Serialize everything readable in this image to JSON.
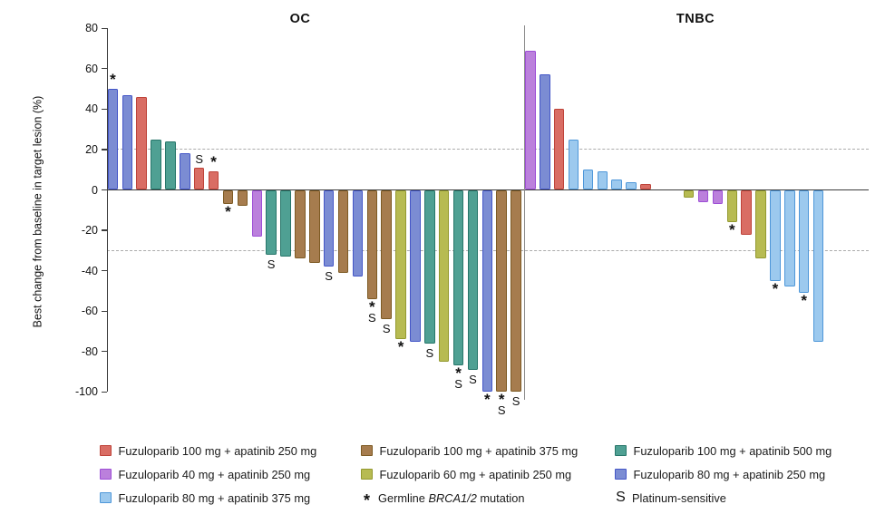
{
  "panels": {
    "left": "OC",
    "right": "TNBC"
  },
  "axis": {
    "y_label": "Best change from baseline in target lesion (%)"
  },
  "chart_data": {
    "type": "bar",
    "subtype": "waterfall",
    "title_left": "OC",
    "title_right": "TNBC",
    "xlabel": "",
    "ylabel": "Best change from baseline in target lesion (%)",
    "ylim": [
      -100,
      80
    ],
    "yticks": [
      80,
      60,
      40,
      20,
      0,
      -20,
      -40,
      -60,
      -80,
      -100
    ],
    "reference_lines": [
      20,
      -30
    ],
    "grid": "dashed-reference-lines-only",
    "legend_position": "bottom",
    "marker_meanings": {
      "*": "Germline BRCA1/2 mutation",
      "S": "Platinum-sensitive"
    },
    "groups": {
      "F100_A250": {
        "label": "Fuzuloparib 100 mg + apatinib 250 mg",
        "fill": "#D96D64",
        "border": "#BE4339"
      },
      "F40_A250": {
        "label": "Fuzuloparib 40 mg + apatinib 250 mg",
        "fill": "#BB80DC",
        "border": "#9D4ED6"
      },
      "F80_A375": {
        "label": "Fuzuloparib 80 mg + apatinib 375 mg",
        "fill": "#9CC9EE",
        "border": "#4E97D9"
      },
      "F100_A375": {
        "label": "Fuzuloparib 100 mg + apatinib 375 mg",
        "fill": "#A67C4E",
        "border": "#7D5A23"
      },
      "F60_A250": {
        "label": "Fuzuloparib 60 mg + apatinib 250 mg",
        "fill": "#B7BB52",
        "border": "#93992F"
      },
      "F100_A500": {
        "label": "Fuzuloparib 100 mg + apatinib 500 mg",
        "fill": "#4FA093",
        "border": "#27766A"
      },
      "F80_A250": {
        "label": "Fuzuloparib 80 mg + apatinib 250 mg",
        "fill": "#7B8CD3",
        "border": "#4456C7"
      }
    },
    "series": [
      {
        "panel": "OC",
        "bars": [
          {
            "group": "F80_A250",
            "value": 50,
            "marks": [
              "*"
            ]
          },
          {
            "group": "F80_A250",
            "value": 47
          },
          {
            "group": "F100_A250",
            "value": 46
          },
          {
            "group": "F100_A500",
            "value": 25
          },
          {
            "group": "F100_A500",
            "value": 24
          },
          {
            "group": "F80_A250",
            "value": 18
          },
          {
            "group": "F100_A250",
            "value": 11,
            "marks": [
              "S"
            ]
          },
          {
            "group": "F100_A250",
            "value": 9,
            "marks": [
              "*"
            ]
          },
          {
            "group": "F100_A375",
            "value": -7,
            "marks": [
              "*"
            ]
          },
          {
            "group": "F100_A375",
            "value": -8
          },
          {
            "group": "F40_A250",
            "value": -23
          },
          {
            "group": "F100_A500",
            "value": -32,
            "marks": [
              "S"
            ]
          },
          {
            "group": "F100_A500",
            "value": -33
          },
          {
            "group": "F100_A375",
            "value": -34
          },
          {
            "group": "F100_A375",
            "value": -36
          },
          {
            "group": "F80_A250",
            "value": -38,
            "marks": [
              "S"
            ]
          },
          {
            "group": "F100_A375",
            "value": -41
          },
          {
            "group": "F80_A250",
            "value": -43
          },
          {
            "group": "F100_A375",
            "value": -54,
            "marks": [
              "*",
              "S"
            ]
          },
          {
            "group": "F100_A375",
            "value": -64,
            "marks": [
              "S"
            ]
          },
          {
            "group": "F60_A250",
            "value": -74,
            "marks": [
              "*"
            ]
          },
          {
            "group": "F80_A250",
            "value": -75
          },
          {
            "group": "F100_A500",
            "value": -76,
            "marks": [
              "S"
            ]
          },
          {
            "group": "F60_A250",
            "value": -85
          },
          {
            "group": "F100_A500",
            "value": -87,
            "marks": [
              "*",
              "S"
            ]
          },
          {
            "group": "F100_A500",
            "value": -89,
            "marks": [
              "S"
            ]
          },
          {
            "group": "F80_A250",
            "value": -100,
            "marks": [
              "*"
            ]
          },
          {
            "group": "F100_A375",
            "value": -100,
            "marks": [
              "*",
              "S"
            ]
          },
          {
            "group": "F100_A375",
            "value": -100,
            "marks": [
              "S"
            ]
          }
        ]
      },
      {
        "panel": "TNBC",
        "bars": [
          {
            "group": "F40_A250",
            "value": 69
          },
          {
            "group": "F80_A250",
            "value": 57
          },
          {
            "group": "F100_A250",
            "value": 40
          },
          {
            "group": "F80_A375",
            "value": 25
          },
          {
            "group": "F80_A375",
            "value": 10
          },
          {
            "group": "F80_A375",
            "value": 9
          },
          {
            "group": "F80_A375",
            "value": 5
          },
          {
            "group": "F80_A375",
            "value": 4
          },
          {
            "group": "F100_A250",
            "value": 3
          },
          {
            "group": null,
            "value": 0
          },
          {
            "group": null,
            "value": 0
          },
          {
            "group": "F60_A250",
            "value": -4
          },
          {
            "group": "F40_A250",
            "value": -6
          },
          {
            "group": "F40_A250",
            "value": -7
          },
          {
            "group": "F60_A250",
            "value": -16,
            "marks": [
              "*"
            ]
          },
          {
            "group": "F100_A250",
            "value": -22
          },
          {
            "group": "F60_A250",
            "value": -34
          },
          {
            "group": "F80_A375",
            "value": -45,
            "marks": [
              "*"
            ]
          },
          {
            "group": "F80_A375",
            "value": -48
          },
          {
            "group": "F80_A375",
            "value": -51,
            "marks": [
              "*"
            ]
          },
          {
            "group": "F80_A375",
            "value": -75
          }
        ]
      }
    ]
  },
  "legend": {
    "columns": [
      {
        "items": [
          {
            "type": "swatch",
            "group": "F100_A250"
          },
          {
            "type": "swatch",
            "group": "F40_A250"
          },
          {
            "type": "swatch",
            "group": "F80_A375"
          }
        ]
      },
      {
        "items": [
          {
            "type": "swatch",
            "group": "F100_A375"
          },
          {
            "type": "swatch",
            "group": "F60_A250"
          },
          {
            "type": "symbol",
            "symbol": "*",
            "parts": [
              "Germline ",
              "BRCA1/2",
              " mutation"
            ],
            "italic_index": 1
          }
        ]
      },
      {
        "items": [
          {
            "type": "swatch",
            "group": "F100_A500"
          },
          {
            "type": "swatch",
            "group": "F80_A250"
          },
          {
            "type": "symbol",
            "symbol": "S",
            "parts": [
              "Platinum-sensitive"
            ]
          }
        ]
      }
    ]
  }
}
